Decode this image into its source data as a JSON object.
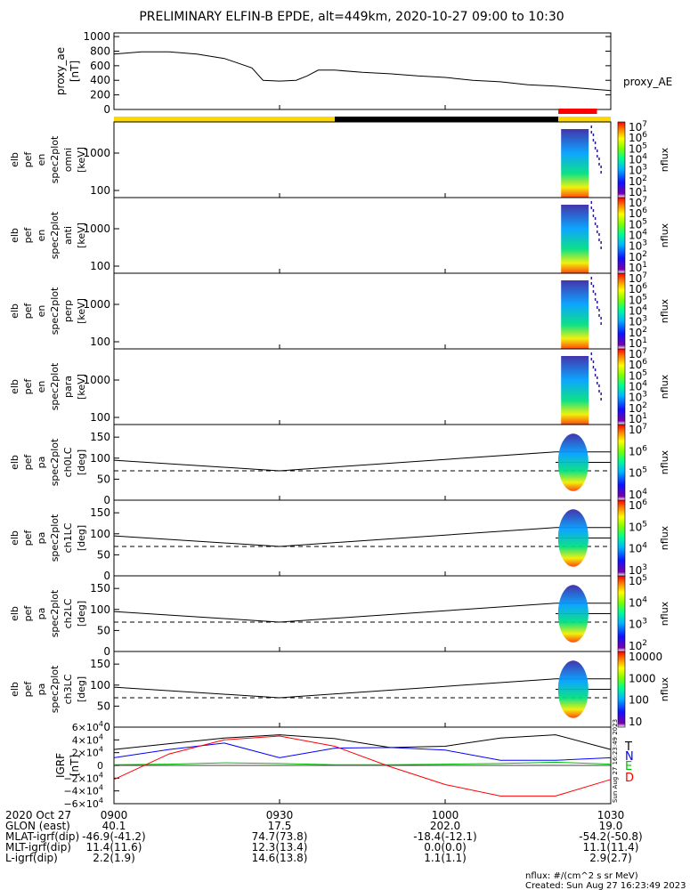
{
  "title": "PRELIMINARY ELFIN-B EPDE, alt=449km, 2020-10-27 09:00 to 10:30",
  "time_axis": {
    "ticks": [
      "0900",
      "0930",
      "1000",
      "1030"
    ],
    "tick_minutes": [
      0,
      30,
      60,
      90
    ],
    "range_minutes": [
      0,
      90
    ]
  },
  "status_bar": {
    "colors": {
      "sunlight": "#ffd700",
      "shadow": "#000000",
      "science": "#ff0000"
    },
    "segments": [
      {
        "from": 0,
        "to": 40,
        "color": "#ffd700"
      },
      {
        "from": 40,
        "to": 80.5,
        "color": "#000000"
      },
      {
        "from": 80.5,
        "to": 90,
        "color": "#ffd700"
      }
    ],
    "science_zone": {
      "from": 80.5,
      "to": 87.5
    }
  },
  "colors": {
    "bx": "#000000",
    "by": "#0000ff",
    "bz": "#00c000",
    "bd": "#ff0000",
    "ae": "#000000"
  },
  "panels": {
    "ae": {
      "ylabel": [
        "proxy_ae",
        "[nT]"
      ],
      "yticks": [
        "1000",
        "800",
        "600",
        "400",
        "200",
        "0"
      ],
      "right_label": "proxy_AE"
    },
    "spec": [
      {
        "label": [
          "elb",
          "pef",
          "en",
          "spec2plot",
          "omni",
          "[keV]"
        ]
      },
      {
        "label": [
          "elb",
          "pef",
          "en",
          "spec2plot",
          "anti",
          "[keV]"
        ]
      },
      {
        "label": [
          "elb",
          "pef",
          "en",
          "spec2plot",
          "perp",
          "[keV]"
        ]
      },
      {
        "label": [
          "elb",
          "pef",
          "en",
          "spec2plot",
          "para",
          "[keV]"
        ]
      }
    ],
    "spec_yticks": [
      "1000",
      "100"
    ],
    "spec_colorbar": {
      "ticks": [
        "10",
        "10",
        "10",
        "10",
        "10",
        "10",
        "10"
      ],
      "exps": [
        "7",
        "6",
        "5",
        "4",
        "3",
        "2",
        "1"
      ],
      "unit": "nflux"
    },
    "pa": [
      {
        "label": [
          "elb",
          "pef",
          "pa",
          "spec2plot",
          "ch0LC",
          "[deg]"
        ],
        "cb_ticks": [
          "10",
          "10",
          "10",
          "10"
        ],
        "cb_exps": [
          "7",
          "6",
          "5",
          "4"
        ]
      },
      {
        "label": [
          "elb",
          "pef",
          "pa",
          "spec2plot",
          "ch1LC",
          "[deg]"
        ],
        "cb_ticks": [
          "10",
          "10",
          "10",
          "10"
        ],
        "cb_exps": [
          "6",
          "5",
          "4",
          "3"
        ]
      },
      {
        "label": [
          "elb",
          "pef",
          "pa",
          "spec2plot",
          "ch2LC",
          "[deg]"
        ],
        "cb_ticks": [
          "10",
          "10",
          "10",
          "10"
        ],
        "cb_exps": [
          "5",
          "4",
          "3",
          "2"
        ]
      },
      {
        "label": [
          "elb",
          "pef",
          "pa",
          "spec2plot",
          "ch3LC",
          "[deg]"
        ],
        "cb_ticks": [
          "10000",
          "1000",
          "100",
          "10"
        ],
        "cb_exps": [
          "",
          "",
          "",
          ""
        ]
      }
    ],
    "pa_yticks": [
      "150",
      "100",
      "50",
      "0"
    ],
    "pa_cb_unit": "nflux",
    "igrf": {
      "ylabel": [
        "IGRF",
        "[nT]"
      ],
      "yticks": [
        {
          "mant": "6×10",
          "exp": "4"
        },
        {
          "mant": "4×10",
          "exp": "4"
        },
        {
          "mant": "2×10",
          "exp": "4"
        },
        {
          "mant": "0",
          "exp": ""
        },
        {
          "mant": "−2×10",
          "exp": "4"
        },
        {
          "mant": "−4×10",
          "exp": "4"
        },
        {
          "mant": "−6×10",
          "exp": "4"
        }
      ],
      "legend": [
        "T",
        "N",
        "E",
        "D"
      ],
      "stamp": "Sun Aug 27 16:23:49 2023"
    }
  },
  "bottom_table": {
    "rows": [
      {
        "label": "2020 Oct 27",
        "values": [
          "0900",
          "0930",
          "1000",
          "1030"
        ]
      },
      {
        "label": "GLON (east)",
        "values": [
          "40.1",
          "17.5",
          "202.0",
          "19.0"
        ]
      },
      {
        "label": "MLAT-igrf(dip)",
        "values": [
          "-46.9(-41.2)",
          "74.7(73.8)",
          "-18.4(-12.1)",
          "-54.2(-50.8)"
        ]
      },
      {
        "label": "MLT-igrf(dip)",
        "values": [
          "11.4(11.6)",
          "12.3(13.4)",
          "0.0(0.0)",
          "11.1(11.4)"
        ]
      },
      {
        "label": "L-igrf(dip)",
        "values": [
          "2.2(1.9)",
          "14.6(13.8)",
          "1.1(1.1)",
          "2.9(2.7)"
        ]
      }
    ]
  },
  "footer": {
    "units": "nflux: #/(cm^2 s sr MeV)",
    "created": "Created: Sun Aug 27 16:23:49 2023"
  },
  "chart_data": [
    {
      "type": "line",
      "name": "proxy_ae",
      "x_minutes": [
        0,
        5,
        10,
        15,
        20,
        25,
        27,
        30,
        33,
        35,
        37,
        40,
        45,
        50,
        55,
        60,
        65,
        70,
        75,
        80,
        85,
        90
      ],
      "values": [
        760,
        790,
        790,
        760,
        700,
        570,
        400,
        390,
        400,
        460,
        540,
        540,
        510,
        490,
        460,
        440,
        400,
        380,
        340,
        320,
        290,
        260
      ],
      "ylim": [
        0,
        1050
      ]
    },
    {
      "type": "line",
      "name": "IGRF",
      "x_minutes": [
        0,
        10,
        20,
        30,
        40,
        50,
        60,
        70,
        80,
        90
      ],
      "ylim": [
        -60000,
        60000
      ],
      "series": [
        {
          "name": "T",
          "values": [
            25000,
            34000,
            43000,
            48000,
            42000,
            28000,
            30000,
            43000,
            48000,
            25000
          ]
        },
        {
          "name": "N",
          "values": [
            12000,
            25000,
            35000,
            12000,
            27000,
            28000,
            24000,
            8000,
            8000,
            12000
          ]
        },
        {
          "name": "E",
          "values": [
            1000,
            2000,
            4000,
            3000,
            1000,
            1000,
            2000,
            3000,
            5000,
            2000
          ]
        },
        {
          "name": "D",
          "values": [
            -22000,
            18000,
            40000,
            46000,
            30000,
            -2000,
            -30000,
            -48000,
            -48000,
            -22000
          ]
        }
      ]
    }
  ]
}
